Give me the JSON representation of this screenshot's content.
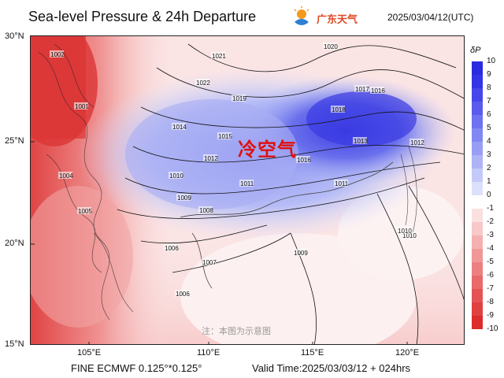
{
  "header": {
    "title": "Sea-level Pressure & 24h Departure",
    "logo_text": "广东天气",
    "timestamp": "2025/03/04/12(UTC)"
  },
  "map": {
    "lat_labels": [
      "30°N",
      "25°N",
      "20°N",
      "15°N"
    ],
    "lon_labels": [
      "105°E",
      "110°E",
      "115°E",
      "120°E"
    ],
    "cold_air_label": "冷空气",
    "note": "注：本图为示意图"
  },
  "isobar_labels": [
    "1020",
    "1019",
    "1018",
    "1017",
    "1016",
    "1016",
    "1015",
    "1014",
    "1013",
    "1012",
    "1011",
    "1010",
    "1009",
    "1008",
    "1007",
    "1006",
    "1005",
    "1004",
    "1002",
    "1001",
    "1021",
    "1022",
    "1011",
    "1010",
    "1009",
    "1006",
    "1012",
    "1010"
  ],
  "colorbar": {
    "label": "δP",
    "ticks": [
      "10",
      "9",
      "8",
      "7",
      "6",
      "5",
      "4",
      "3",
      "2",
      "1",
      "0",
      "-1",
      "-2",
      "-3",
      "-4",
      "-5",
      "-6",
      "-7",
      "-8",
      "-9",
      "-10"
    ],
    "colors": [
      "#2a2ae0",
      "#3434e6",
      "#4646ea",
      "#5a5aec",
      "#6e72f0",
      "#8288f2",
      "#989ef4",
      "#aeb4f6",
      "#c4caf8",
      "#dce0fb",
      "#ffffff",
      "#fbe0e0",
      "#f8c8c8",
      "#f4b0b0",
      "#f09898",
      "#ec8080",
      "#e86a6a",
      "#e45454",
      "#e04040",
      "#dc2c2c"
    ]
  },
  "footer": {
    "model": "FINE ECMWF 0.125°*0.125°",
    "valid": "Valid Time:2025/03/03/12 + 024hrs"
  }
}
